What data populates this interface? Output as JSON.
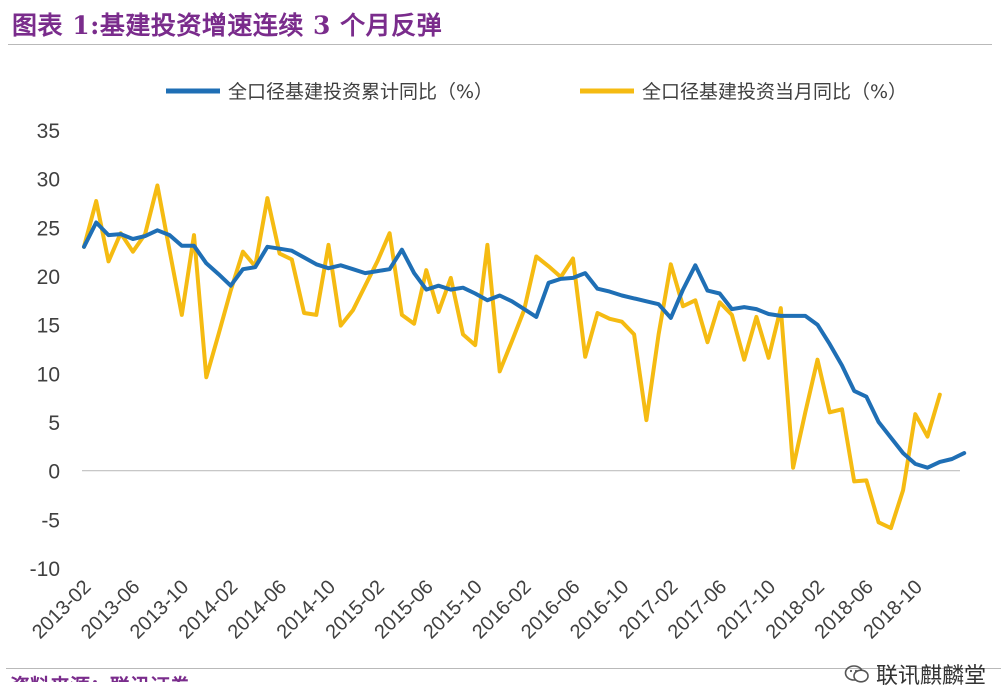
{
  "title": "图表 1:基建投资增速连续 3 个月反弹",
  "source": "资料来源：联讯证券",
  "watermark": "联讯麒麟堂",
  "colors": {
    "series1": "#1f6fb5",
    "series2": "#f5bb12",
    "title": "#7a2c8c",
    "axis_text": "#404040"
  },
  "chart_data": {
    "type": "line",
    "legend_position": "top",
    "grid": false,
    "ylim": [
      -10,
      35
    ],
    "yticks": [
      -10,
      -5,
      0,
      5,
      10,
      15,
      20,
      25,
      30,
      35
    ],
    "x_start": "2013-02",
    "x_end": "2018-12",
    "x_tick_labels": [
      "2013-02",
      "2013-06",
      "2013-10",
      "2014-02",
      "2014-06",
      "2014-10",
      "2015-02",
      "2015-06",
      "2015-10",
      "2016-02",
      "2016-06",
      "2016-10",
      "2017-02",
      "2017-06",
      "2017-10",
      "2018-02",
      "2018-06",
      "2018-10"
    ],
    "series": [
      {
        "name": "全口径基建投资累计同比（%）",
        "color": "#1f6fb5",
        "points": [
          [
            "2013-02",
            23.0
          ],
          [
            "2013-03",
            25.5
          ],
          [
            "2013-04",
            24.2
          ],
          [
            "2013-05",
            24.3
          ],
          [
            "2013-06",
            23.8
          ],
          [
            "2013-07",
            24.1
          ],
          [
            "2013-08",
            24.7
          ],
          [
            "2013-09",
            24.2
          ],
          [
            "2013-10",
            23.1
          ],
          [
            "2013-11",
            23.1
          ],
          [
            "2013-12",
            21.3
          ],
          [
            "2014-01",
            20.2
          ],
          [
            "2014-02",
            19.0
          ],
          [
            "2014-03",
            20.7
          ],
          [
            "2014-04",
            20.9
          ],
          [
            "2014-05",
            23.0
          ],
          [
            "2014-06",
            22.8
          ],
          [
            "2014-07",
            22.6
          ],
          [
            "2014-08",
            21.9
          ],
          [
            "2014-09",
            21.2
          ],
          [
            "2014-10",
            20.8
          ],
          [
            "2014-11",
            21.1
          ],
          [
            "2014-12",
            20.7
          ],
          [
            "2015-01",
            20.3
          ],
          [
            "2015-02",
            20.5
          ],
          [
            "2015-03",
            20.7
          ],
          [
            "2015-04",
            22.7
          ],
          [
            "2015-05",
            20.3
          ],
          [
            "2015-06",
            18.6
          ],
          [
            "2015-07",
            19.0
          ],
          [
            "2015-08",
            18.6
          ],
          [
            "2015-09",
            18.8
          ],
          [
            "2015-10",
            18.2
          ],
          [
            "2015-11",
            17.5
          ],
          [
            "2015-12",
            18.0
          ],
          [
            "2016-01",
            17.4
          ],
          [
            "2016-02",
            16.6
          ],
          [
            "2016-03",
            15.8
          ],
          [
            "2016-04",
            19.3
          ],
          [
            "2016-05",
            19.7
          ],
          [
            "2016-06",
            19.8
          ],
          [
            "2016-07",
            20.3
          ],
          [
            "2016-08",
            18.7
          ],
          [
            "2016-09",
            18.4
          ],
          [
            "2016-10",
            18.0
          ],
          [
            "2016-11",
            17.7
          ],
          [
            "2016-12",
            17.4
          ],
          [
            "2017-01",
            17.1
          ],
          [
            "2017-02",
            15.7
          ],
          [
            "2017-03",
            18.6
          ],
          [
            "2017-04",
            21.1
          ],
          [
            "2017-05",
            18.5
          ],
          [
            "2017-06",
            18.2
          ],
          [
            "2017-07",
            16.6
          ],
          [
            "2017-08",
            16.8
          ],
          [
            "2017-09",
            16.6
          ],
          [
            "2017-10",
            16.1
          ],
          [
            "2017-11",
            15.9
          ],
          [
            "2017-12",
            15.9
          ],
          [
            "2018-01",
            15.9
          ],
          [
            "2018-02",
            15.0
          ],
          [
            "2018-03",
            13.0
          ],
          [
            "2018-04",
            10.8
          ],
          [
            "2018-05",
            8.2
          ],
          [
            "2018-06",
            7.6
          ],
          [
            "2018-07",
            5.0
          ],
          [
            "2018-08",
            3.4
          ],
          [
            "2018-09",
            1.8
          ],
          [
            "2018-10",
            0.7
          ],
          [
            "2018-11",
            0.3
          ],
          [
            "2018-12",
            0.9
          ],
          [
            "2019-01",
            1.2
          ],
          [
            "2019-02",
            1.8
          ]
        ]
      },
      {
        "name": "全口径基建投资当月同比（%）",
        "color": "#f5bb12",
        "points": [
          [
            "2013-02",
            23.0
          ],
          [
            "2013-03",
            27.7
          ],
          [
            "2013-04",
            21.5
          ],
          [
            "2013-05",
            24.4
          ],
          [
            "2013-06",
            22.5
          ],
          [
            "2013-07",
            24.3
          ],
          [
            "2013-08",
            29.3
          ],
          [
            "2013-09",
            22.6
          ],
          [
            "2013-10",
            16.0
          ],
          [
            "2013-11",
            24.2
          ],
          [
            "2013-12",
            9.6
          ],
          [
            "2014-01",
            14.0
          ],
          [
            "2014-02",
            18.5
          ],
          [
            "2014-03",
            22.5
          ],
          [
            "2014-04",
            21.0
          ],
          [
            "2014-05",
            28.0
          ],
          [
            "2014-06",
            22.3
          ],
          [
            "2014-07",
            21.7
          ],
          [
            "2014-08",
            16.2
          ],
          [
            "2014-09",
            16.0
          ],
          [
            "2014-10",
            23.2
          ],
          [
            "2014-11",
            14.9
          ],
          [
            "2014-12",
            16.5
          ],
          [
            "2015-01",
            19.0
          ],
          [
            "2015-02",
            21.5
          ],
          [
            "2015-03",
            24.4
          ],
          [
            "2015-04",
            16.0
          ],
          [
            "2015-05",
            15.1
          ],
          [
            "2015-06",
            20.6
          ],
          [
            "2015-07",
            16.3
          ],
          [
            "2015-08",
            19.8
          ],
          [
            "2015-09",
            14.0
          ],
          [
            "2015-10",
            12.9
          ],
          [
            "2015-11",
            23.2
          ],
          [
            "2015-12",
            10.2
          ],
          [
            "2016-01",
            13.3
          ],
          [
            "2016-02",
            16.5
          ],
          [
            "2016-03",
            22.0
          ],
          [
            "2016-04",
            21.0
          ],
          [
            "2016-05",
            19.9
          ],
          [
            "2016-06",
            21.8
          ],
          [
            "2016-07",
            11.7
          ],
          [
            "2016-08",
            16.2
          ],
          [
            "2016-09",
            15.6
          ],
          [
            "2016-10",
            15.3
          ],
          [
            "2016-11",
            14.0
          ],
          [
            "2016-12",
            5.2
          ],
          [
            "2017-01",
            14.0
          ],
          [
            "2017-02",
            21.2
          ],
          [
            "2017-03",
            16.9
          ],
          [
            "2017-04",
            17.5
          ],
          [
            "2017-05",
            13.2
          ],
          [
            "2017-06",
            17.3
          ],
          [
            "2017-07",
            16.0
          ],
          [
            "2017-08",
            11.4
          ],
          [
            "2017-09",
            15.8
          ],
          [
            "2017-10",
            11.6
          ],
          [
            "2017-11",
            16.7
          ],
          [
            "2017-12",
            0.3
          ],
          [
            "2018-01",
            6.0
          ],
          [
            "2018-02",
            11.4
          ],
          [
            "2018-03",
            6.0
          ],
          [
            "2018-04",
            6.3
          ],
          [
            "2018-05",
            -1.1
          ],
          [
            "2018-06",
            -1.0
          ],
          [
            "2018-07",
            -5.3
          ],
          [
            "2018-08",
            -5.9
          ],
          [
            "2018-09",
            -2.0
          ],
          [
            "2018-10",
            5.8
          ],
          [
            "2018-11",
            3.5
          ],
          [
            "2018-12",
            7.8
          ]
        ]
      }
    ]
  }
}
